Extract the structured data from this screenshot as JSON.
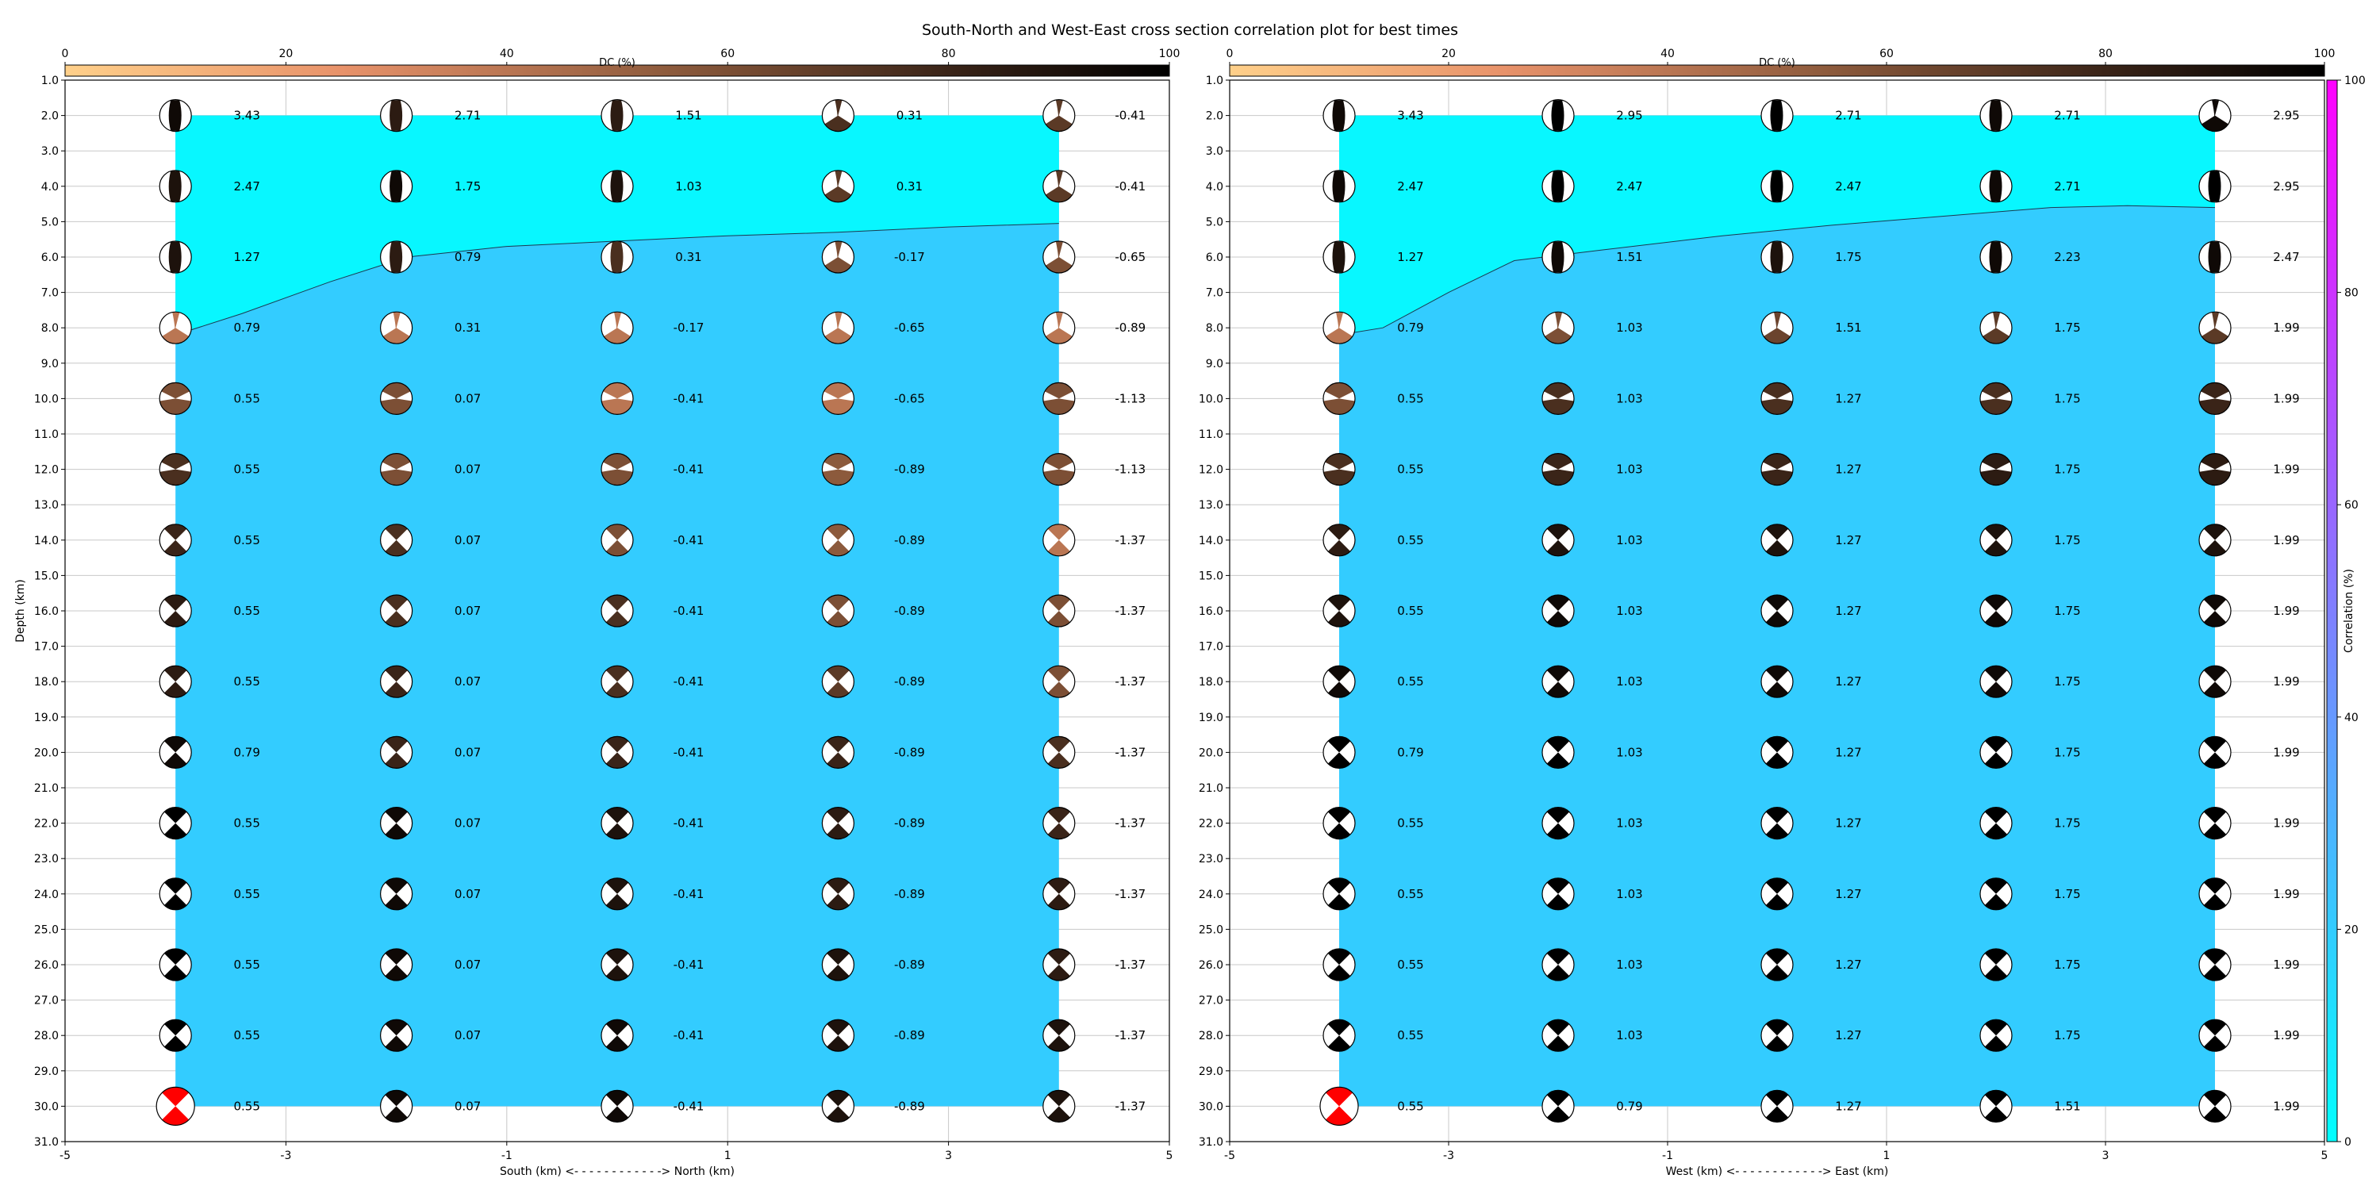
{
  "chart_data": {
    "type": "heatmap",
    "title": "South-North and West-East cross section correlation plot for best times",
    "depth_ticks": [
      "1.0",
      "2.0",
      "3.0",
      "4.0",
      "5.0",
      "6.0",
      "7.0",
      "8.0",
      "9.0",
      "10.0",
      "11.0",
      "12.0",
      "13.0",
      "14.0",
      "15.0",
      "16.0",
      "17.0",
      "18.0",
      "19.0",
      "20.0",
      "21.0",
      "22.0",
      "23.0",
      "24.0",
      "25.0",
      "26.0",
      "27.0",
      "28.0",
      "29.0",
      "30.0",
      "31.0"
    ],
    "depths": [
      2,
      4,
      6,
      8,
      10,
      12,
      14,
      16,
      18,
      20,
      22,
      24,
      26,
      28,
      30
    ],
    "ylim": [
      1,
      31
    ],
    "dc_colorbar": {
      "label": "DC (%)",
      "ticks": [
        "0",
        "20",
        "40",
        "60",
        "80",
        "100"
      ],
      "range": [
        0,
        100
      ]
    },
    "corr_colorbar": {
      "label": "Correlation (%)",
      "ticks": [
        "0",
        "20",
        "40",
        "60",
        "80",
        "100"
      ],
      "range": [
        0,
        100
      ]
    },
    "panels": [
      {
        "xlabel": "South (km) <- - - - - - - - - - - -> North (km)",
        "ylabel": "Depth (km)",
        "x_ticks": [
          "-5",
          "-3",
          "-1",
          "1",
          "3",
          "5"
        ],
        "xlim": [
          -5,
          5
        ],
        "columns": [
          -4,
          -2,
          0,
          2,
          4
        ],
        "times": [
          [
            "3.43",
            "2.71",
            "1.51",
            "0.31",
            "-0.41"
          ],
          [
            "2.47",
            "1.75",
            "1.03",
            "0.31",
            "-0.41"
          ],
          [
            "1.27",
            "0.79",
            "0.31",
            "-0.17",
            "-0.65"
          ],
          [
            "0.79",
            "0.31",
            "-0.17",
            "-0.65",
            "-0.89"
          ],
          [
            "0.55",
            "0.07",
            "-0.41",
            "-0.65",
            "-1.13"
          ],
          [
            "0.55",
            "0.07",
            "-0.41",
            "-0.89",
            "-1.13"
          ],
          [
            "0.55",
            "0.07",
            "-0.41",
            "-0.89",
            "-1.37"
          ],
          [
            "0.55",
            "0.07",
            "-0.41",
            "-0.89",
            "-1.37"
          ],
          [
            "0.55",
            "0.07",
            "-0.41",
            "-0.89",
            "-1.37"
          ],
          [
            "0.79",
            "0.07",
            "-0.41",
            "-0.89",
            "-1.37"
          ],
          [
            "0.55",
            "0.07",
            "-0.41",
            "-0.89",
            "-1.37"
          ],
          [
            "0.55",
            "0.07",
            "-0.41",
            "-0.89",
            "-1.37"
          ],
          [
            "0.55",
            "0.07",
            "-0.41",
            "-0.89",
            "-1.37"
          ],
          [
            "0.55",
            "0.07",
            "-0.41",
            "-0.89",
            "-1.37"
          ],
          [
            "0.55",
            "0.07",
            "-0.41",
            "-0.89",
            "-1.37"
          ]
        ],
        "dc": [
          [
            95,
            85,
            85,
            75,
            70
          ],
          [
            90,
            95,
            90,
            70,
            70
          ],
          [
            90,
            85,
            75,
            60,
            60
          ],
          [
            40,
            40,
            40,
            40,
            40
          ],
          [
            60,
            60,
            40,
            40,
            60
          ],
          [
            75,
            60,
            60,
            55,
            60
          ],
          [
            80,
            75,
            60,
            55,
            40
          ],
          [
            85,
            75,
            75,
            60,
            60
          ],
          [
            85,
            80,
            75,
            70,
            60
          ],
          [
            95,
            80,
            80,
            80,
            75
          ],
          [
            100,
            95,
            90,
            85,
            80
          ],
          [
            100,
            95,
            90,
            85,
            85
          ],
          [
            100,
            95,
            90,
            90,
            85
          ],
          [
            100,
            95,
            95,
            90,
            90
          ],
          [
            100,
            95,
            95,
            90,
            90
          ]
        ],
        "shape": [
          [
            "sv",
            "sv",
            "sv",
            "sn",
            "sn"
          ],
          [
            "sv",
            "sv",
            "sv",
            "sn",
            "sn"
          ],
          [
            "sv",
            "sv",
            "sv",
            "sn",
            "sn"
          ],
          [
            "sn",
            "sn",
            "sn",
            "sn",
            "sn"
          ],
          [
            "ob",
            "ob",
            "ob",
            "ob",
            "ob"
          ],
          [
            "ob",
            "ob",
            "ob",
            "ob",
            "ob"
          ],
          [
            "bc",
            "bc",
            "bc",
            "bc",
            "bc"
          ],
          [
            "bc",
            "bc",
            "bc",
            "bc",
            "bc"
          ],
          [
            "bc",
            "bc",
            "bc",
            "bc",
            "bc"
          ],
          [
            "bc",
            "bc",
            "bc",
            "bc",
            "bc"
          ],
          [
            "bc",
            "bc",
            "bc",
            "bc",
            "bc"
          ],
          [
            "bc",
            "bc",
            "bc",
            "bc",
            "bc"
          ],
          [
            "bc",
            "bc",
            "bc",
            "bc",
            "bc"
          ],
          [
            "bc",
            "bc",
            "bc",
            "bc",
            "bc"
          ],
          [
            "bc",
            "bc",
            "bc",
            "bc",
            "bc"
          ]
        ],
        "best_row": 14,
        "best_col": 0,
        "boundary": [
          [
            -4,
            8.2
          ],
          [
            -3.4,
            7.6
          ],
          [
            -2.6,
            6.7
          ],
          [
            -1.9,
            6.0
          ],
          [
            -1,
            5.7
          ],
          [
            0,
            5.55
          ],
          [
            1,
            5.4
          ],
          [
            2,
            5.3
          ],
          [
            3,
            5.15
          ],
          [
            4,
            5.05
          ]
        ],
        "corr_upper": 3,
        "corr_lower": 20
      },
      {
        "xlabel": "West (km) <- - - - - - - - - - - -> East (km)",
        "ylabel": "",
        "x_ticks": [
          "-5",
          "-3",
          "-1",
          "1",
          "3",
          "5"
        ],
        "xlim": [
          -5,
          5
        ],
        "columns": [
          -4,
          -2,
          0,
          2,
          4
        ],
        "times": [
          [
            "3.43",
            "2.95",
            "2.71",
            "2.71",
            "2.95"
          ],
          [
            "2.47",
            "2.47",
            "2.47",
            "2.71",
            "2.95"
          ],
          [
            "1.27",
            "1.51",
            "1.75",
            "2.23",
            "2.47"
          ],
          [
            "0.79",
            "1.03",
            "1.51",
            "1.75",
            "1.99"
          ],
          [
            "0.55",
            "1.03",
            "1.27",
            "1.75",
            "1.99"
          ],
          [
            "0.55",
            "1.03",
            "1.27",
            "1.75",
            "1.99"
          ],
          [
            "0.55",
            "1.03",
            "1.27",
            "1.75",
            "1.99"
          ],
          [
            "0.55",
            "1.03",
            "1.27",
            "1.75",
            "1.99"
          ],
          [
            "0.55",
            "1.03",
            "1.27",
            "1.75",
            "1.99"
          ],
          [
            "0.79",
            "1.03",
            "1.27",
            "1.75",
            "1.99"
          ],
          [
            "0.55",
            "1.03",
            "1.27",
            "1.75",
            "1.99"
          ],
          [
            "0.55",
            "1.03",
            "1.27",
            "1.75",
            "1.99"
          ],
          [
            "0.55",
            "1.03",
            "1.27",
            "1.75",
            "1.99"
          ],
          [
            "0.55",
            "1.03",
            "1.27",
            "1.75",
            "1.99"
          ],
          [
            "0.55",
            "0.79",
            "1.27",
            "1.51",
            "1.99"
          ]
        ],
        "dc": [
          [
            95,
            100,
            100,
            95,
            95
          ],
          [
            95,
            100,
            100,
            95,
            100
          ],
          [
            90,
            95,
            90,
            95,
            95
          ],
          [
            40,
            60,
            65,
            70,
            70
          ],
          [
            60,
            75,
            75,
            75,
            80
          ],
          [
            75,
            80,
            80,
            85,
            85
          ],
          [
            85,
            90,
            90,
            90,
            90
          ],
          [
            90,
            95,
            95,
            95,
            95
          ],
          [
            95,
            95,
            95,
            95,
            95
          ],
          [
            100,
            100,
            100,
            100,
            100
          ],
          [
            100,
            100,
            100,
            100,
            100
          ],
          [
            100,
            100,
            100,
            100,
            100
          ],
          [
            100,
            100,
            100,
            100,
            100
          ],
          [
            100,
            100,
            100,
            100,
            100
          ],
          [
            100,
            100,
            100,
            100,
            100
          ]
        ],
        "shape": [
          [
            "sv",
            "sv",
            "sv",
            "sv",
            "sn"
          ],
          [
            "sv",
            "sv",
            "sv",
            "sv",
            "sv"
          ],
          [
            "sv",
            "sv",
            "sv",
            "sv",
            "sv"
          ],
          [
            "sn",
            "sn",
            "sn",
            "sn",
            "sn"
          ],
          [
            "ob",
            "ob",
            "ob",
            "ob",
            "ob"
          ],
          [
            "ob",
            "ob",
            "ob",
            "ob",
            "ob"
          ],
          [
            "bc",
            "bc",
            "bc",
            "bc",
            "bc"
          ],
          [
            "bc",
            "bc",
            "bc",
            "bc",
            "bc"
          ],
          [
            "bc",
            "bc",
            "bc",
            "bc",
            "bc"
          ],
          [
            "bc",
            "bc",
            "bc",
            "bc",
            "bc"
          ],
          [
            "bc",
            "bc",
            "bc",
            "bc",
            "bc"
          ],
          [
            "bc",
            "bc",
            "bc",
            "bc",
            "bc"
          ],
          [
            "bc",
            "bc",
            "bc",
            "bc",
            "bc"
          ],
          [
            "bc",
            "bc",
            "bc",
            "bc",
            "bc"
          ],
          [
            "bc",
            "bc",
            "bc",
            "bc",
            "bc"
          ]
        ],
        "best_row": 14,
        "best_col": 0,
        "boundary": [
          [
            -4,
            8.2
          ],
          [
            -3.6,
            8.0
          ],
          [
            -3.0,
            7.0
          ],
          [
            -2.4,
            6.1
          ],
          [
            -1.6,
            5.8
          ],
          [
            -0.5,
            5.4
          ],
          [
            0.5,
            5.1
          ],
          [
            1.5,
            4.85
          ],
          [
            2.5,
            4.6
          ],
          [
            3.2,
            4.55
          ],
          [
            4,
            4.6
          ]
        ],
        "corr_upper": 3,
        "corr_lower": 20
      }
    ],
    "colors": {
      "corr_low": "#00ffff",
      "corr_high": "#ff00ff",
      "dc_low": "#ffd08a",
      "dc_high": "#000000",
      "best_fill": "#ff0000",
      "grid": "#c8c8c8"
    }
  }
}
